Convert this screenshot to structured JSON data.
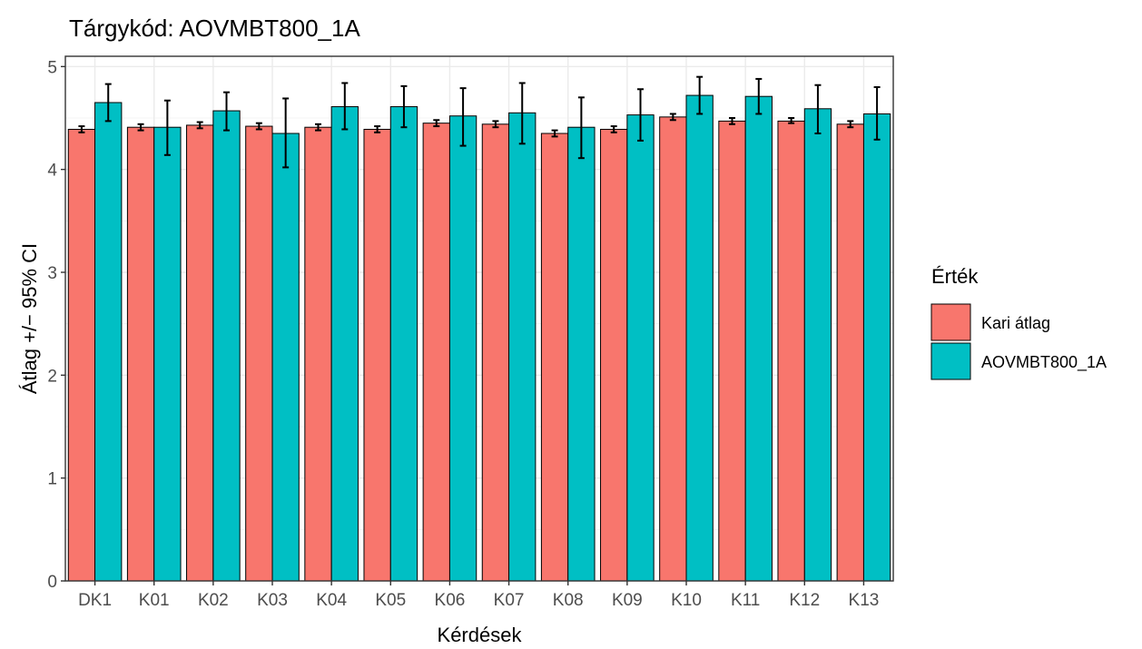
{
  "chart_data": {
    "type": "bar",
    "title": "Tárgykód:  AOVMBT800_1A",
    "xlabel": "Kérdések",
    "ylabel": "Átlag +/− 95% CI",
    "ylim": [
      0,
      5.1
    ],
    "yticks": [
      0,
      1,
      2,
      3,
      4,
      5
    ],
    "grid": true,
    "legend_position": "right",
    "legend_title": "Érték",
    "categories": [
      "DK1",
      "K01",
      "K02",
      "K03",
      "K04",
      "K05",
      "K06",
      "K07",
      "K08",
      "K09",
      "K10",
      "K11",
      "K12",
      "K13"
    ],
    "series": [
      {
        "name": "Kari átlag",
        "color": "#F8766D",
        "values": [
          4.39,
          4.41,
          4.43,
          4.42,
          4.41,
          4.39,
          4.45,
          4.44,
          4.35,
          4.39,
          4.51,
          4.47,
          4.47,
          4.44
        ],
        "ci_low": [
          4.36,
          4.38,
          4.4,
          4.39,
          4.38,
          4.36,
          4.42,
          4.41,
          4.32,
          4.36,
          4.48,
          4.44,
          4.45,
          4.41
        ],
        "ci_high": [
          4.42,
          4.44,
          4.46,
          4.45,
          4.44,
          4.42,
          4.48,
          4.47,
          4.38,
          4.42,
          4.54,
          4.5,
          4.5,
          4.47
        ]
      },
      {
        "name": "AOVMBT800_1A",
        "color": "#00BFC4",
        "values": [
          4.65,
          4.41,
          4.57,
          4.35,
          4.61,
          4.61,
          4.52,
          4.55,
          4.41,
          4.53,
          4.72,
          4.71,
          4.59,
          4.54
        ],
        "ci_low": [
          4.47,
          4.14,
          4.38,
          4.02,
          4.39,
          4.41,
          4.23,
          4.25,
          4.11,
          4.28,
          4.54,
          4.54,
          4.35,
          4.29
        ],
        "ci_high": [
          4.83,
          4.67,
          4.75,
          4.69,
          4.84,
          4.81,
          4.79,
          4.84,
          4.7,
          4.78,
          4.9,
          4.88,
          4.82,
          4.8
        ]
      }
    ]
  }
}
